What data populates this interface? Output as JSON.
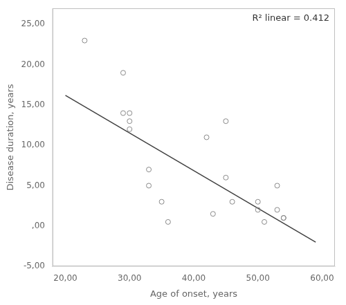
{
  "chart_data": {
    "type": "scatter",
    "annotation": "R² linear = 0.412",
    "xlabel": "Age of onset, years",
    "ylabel": "Disease duration, years",
    "series": [
      {
        "type": "scatter",
        "marker": "circle",
        "color": "#888888",
        "x": [
          23,
          29,
          29,
          30,
          30,
          30,
          33,
          33,
          35,
          36,
          42,
          43,
          45,
          45,
          46,
          50,
          50,
          51,
          53,
          53,
          54,
          54
        ],
        "values": [
          23,
          19,
          14,
          14,
          13,
          12,
          7,
          5,
          3,
          0.5,
          11,
          1.5,
          13,
          6,
          3,
          3,
          2,
          0.5,
          5,
          2,
          1,
          1
        ]
      },
      {
        "type": "line",
        "line_style": "solid",
        "color": "#404040",
        "x": [
          20,
          59
        ],
        "values": [
          16.2,
          -2.0
        ]
      }
    ],
    "xlim": [
      18,
      62
    ],
    "ylim": [
      -5,
      27
    ],
    "xticks": [
      {
        "value": 20,
        "label": "20,00"
      },
      {
        "value": 30,
        "label": "30,00"
      },
      {
        "value": 40,
        "label": "40,00"
      },
      {
        "value": 50,
        "label": "50,00"
      },
      {
        "value": 60,
        "label": "60,00"
      }
    ],
    "yticks": [
      {
        "value": -5,
        "label": "-5,00"
      },
      {
        "value": 0,
        "label": ",00"
      },
      {
        "value": 5,
        "label": "5,00"
      },
      {
        "value": 10,
        "label": "10,00"
      },
      {
        "value": 15,
        "label": "15,00"
      },
      {
        "value": 20,
        "label": "20,00"
      },
      {
        "value": 25,
        "label": "25,00"
      }
    ],
    "grid": false
  }
}
